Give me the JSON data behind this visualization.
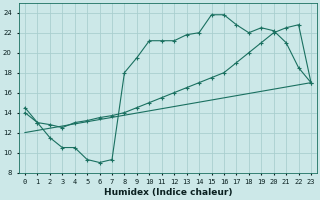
{
  "xlabel": "Humidex (Indice chaleur)",
  "bg_color": "#cce8e8",
  "grid_color": "#aacfcf",
  "line_color": "#1a7060",
  "xlim": [
    -0.5,
    23.5
  ],
  "ylim": [
    8,
    25
  ],
  "xticks": [
    0,
    1,
    2,
    3,
    4,
    5,
    6,
    7,
    8,
    9,
    10,
    11,
    12,
    13,
    14,
    15,
    16,
    17,
    18,
    19,
    20,
    21,
    22,
    23
  ],
  "yticks": [
    8,
    10,
    12,
    14,
    16,
    18,
    20,
    22,
    24
  ],
  "line1_x": [
    0,
    1,
    2,
    3,
    4,
    5,
    6,
    7,
    8,
    9,
    10,
    11,
    12,
    13,
    14,
    15,
    16,
    17,
    18,
    19,
    20,
    21,
    22,
    23
  ],
  "line1_y": [
    14.5,
    13.0,
    11.5,
    10.5,
    10.5,
    9.3,
    9.0,
    9.3,
    18.0,
    19.5,
    21.2,
    21.2,
    21.2,
    21.8,
    22.0,
    23.8,
    23.8,
    22.8,
    22.0,
    22.5,
    22.2,
    21.0,
    18.5,
    17.0
  ],
  "line2_x": [
    0,
    1,
    2,
    3,
    4,
    5,
    6,
    7,
    8,
    9,
    10,
    11,
    12,
    13,
    14,
    15,
    16,
    17,
    18,
    19,
    20,
    21,
    22,
    23
  ],
  "line2_y": [
    14.0,
    13.0,
    12.8,
    12.5,
    13.0,
    13.2,
    13.5,
    13.7,
    14.0,
    14.5,
    15.0,
    15.5,
    16.0,
    16.5,
    17.0,
    17.5,
    18.0,
    19.0,
    20.0,
    21.0,
    22.0,
    22.5,
    22.8,
    17.0
  ],
  "line3_x": [
    0,
    23
  ],
  "line3_y": [
    12.0,
    17.0
  ]
}
